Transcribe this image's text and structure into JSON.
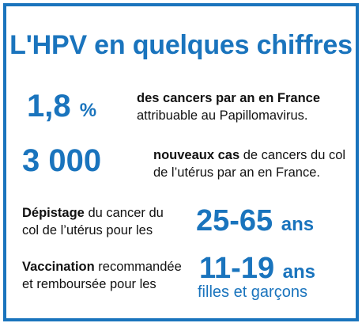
{
  "title": "L'HPV en quelques chiffres",
  "stat1": {
    "value": "1,8",
    "unit": "%",
    "bold": "des cancers par an en France",
    "text": "attribuable au Papillomavirus."
  },
  "stat2": {
    "value": "3 000",
    "bold": "nouveaux cas",
    "text1": " de cancers du col",
    "text2": "de l’utérus par an en France."
  },
  "stat3": {
    "bold": "Dépistage",
    "text1": " du cancer du",
    "text2": "col de l’utérus pour les",
    "value": "25-65",
    "unit": "ans"
  },
  "stat4": {
    "bold": "Vaccination",
    "text1": " recommandée",
    "text2": "et remboursée pour les",
    "value": "11-19",
    "unit": "ans",
    "sub": "filles et garçons"
  },
  "colors": {
    "accent": "#1a74bd",
    "text": "#111111"
  }
}
